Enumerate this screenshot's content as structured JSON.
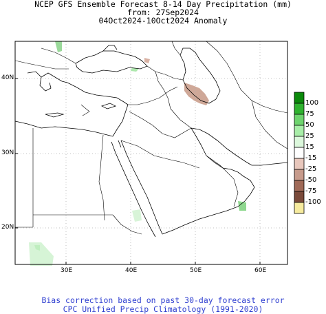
{
  "header": {
    "line1": "NCEP GFS Ensemble Forecast 8-14 Day Precipitation (mm)",
    "line2": "from: 27Sep2024",
    "line3": "04Oct2024-10Oct2024 Anomaly"
  },
  "axes": {
    "lat_labels": [
      "40N",
      "30N",
      "20N"
    ],
    "lon_labels": [
      "30E",
      "40E",
      "50E",
      "60E"
    ]
  },
  "colorbar": {
    "labels": [
      "100",
      "75",
      "50",
      "25",
      "15",
      "-15",
      "-25",
      "-50",
      "-75",
      "-100"
    ],
    "colors": [
      "#0b8a0b",
      "#2fb32f",
      "#6ed46e",
      "#a8eea8",
      "#dcf8dc",
      "#ffffff",
      "#e8c7bc",
      "#c79b8c",
      "#a06a58",
      "#7a4a3a",
      "#f6eb9e"
    ]
  },
  "footer": {
    "line1": "Bias correction based on past 30-day forecast error",
    "line2": "CPC Unified Precip Climatology (1991-2020)"
  }
}
